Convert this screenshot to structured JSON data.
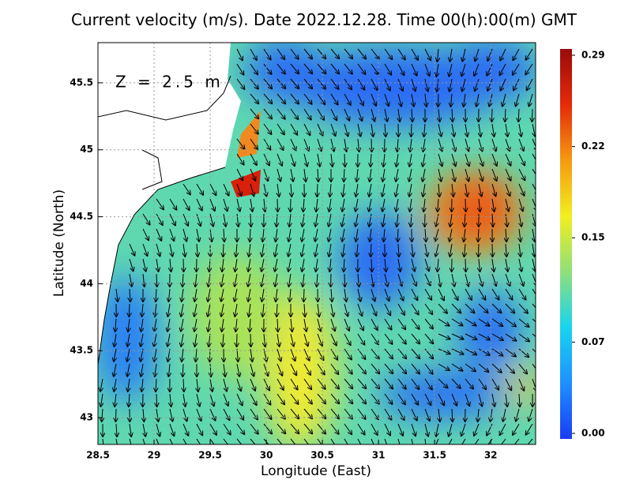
{
  "chart_data": {
    "type": "vector-map",
    "title": "Current velocity (m/s). Date 2022.12.28. Time 00(h):00(m) GMT",
    "annotation": "Z = 2.5 m",
    "xlabel": "Longitude (East)",
    "ylabel": "Latitude (North)",
    "xlim": [
      28.5,
      32.4
    ],
    "ylim": [
      42.8,
      45.8
    ],
    "xticks": [
      28.5,
      29,
      29.5,
      30,
      30.5,
      31,
      31.5,
      32
    ],
    "yticks": [
      43,
      43.5,
      44,
      44.5,
      45,
      45.5
    ],
    "grid": true,
    "colorbar": {
      "lim": [
        0,
        0.29
      ],
      "ticks": [
        {
          "value": 0,
          "label": "0.00"
        },
        0.07,
        0.15,
        0.22,
        0.29
      ],
      "colors": [
        "#1a3cf5",
        "#1e90ff",
        "#19d4ee",
        "#8fe07a",
        "#f2ee20",
        "#f59a10",
        "#e62a0a",
        "#9b0a0a"
      ]
    }
  }
}
